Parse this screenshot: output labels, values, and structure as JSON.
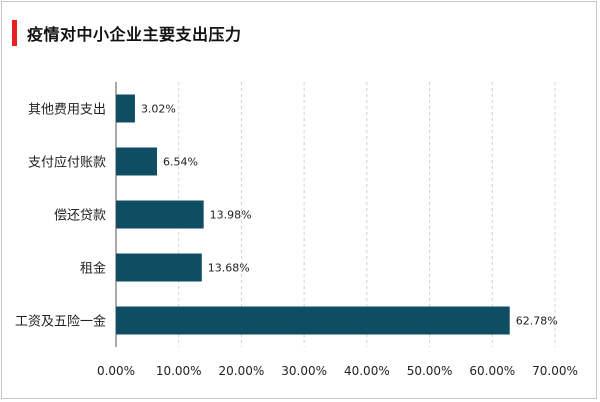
{
  "chart_data": {
    "type": "bar",
    "orientation": "horizontal",
    "title": "疫情对中小企业主要支出压力",
    "categories": [
      "其他费用支出",
      "支付应付账款",
      "偿还贷款",
      "租金",
      "工资及五险一金"
    ],
    "values": [
      3.02,
      6.54,
      13.98,
      13.68,
      62.78
    ],
    "value_labels": [
      "3.02%",
      "6.54%",
      "13.98%",
      "13.68%",
      "62.78%"
    ],
    "xlim": [
      0,
      70
    ],
    "xticks": [
      "0.00%",
      "10.00%",
      "20.00%",
      "30.00%",
      "40.00%",
      "50.00%",
      "60.00%",
      "70.00%"
    ],
    "xlabel": "",
    "ylabel": "",
    "grid": "vertical dashed",
    "legend": "none",
    "colors": {
      "bar": "#0f4d63",
      "accent": "#e8201f",
      "grid": "#d0d0d0"
    }
  }
}
